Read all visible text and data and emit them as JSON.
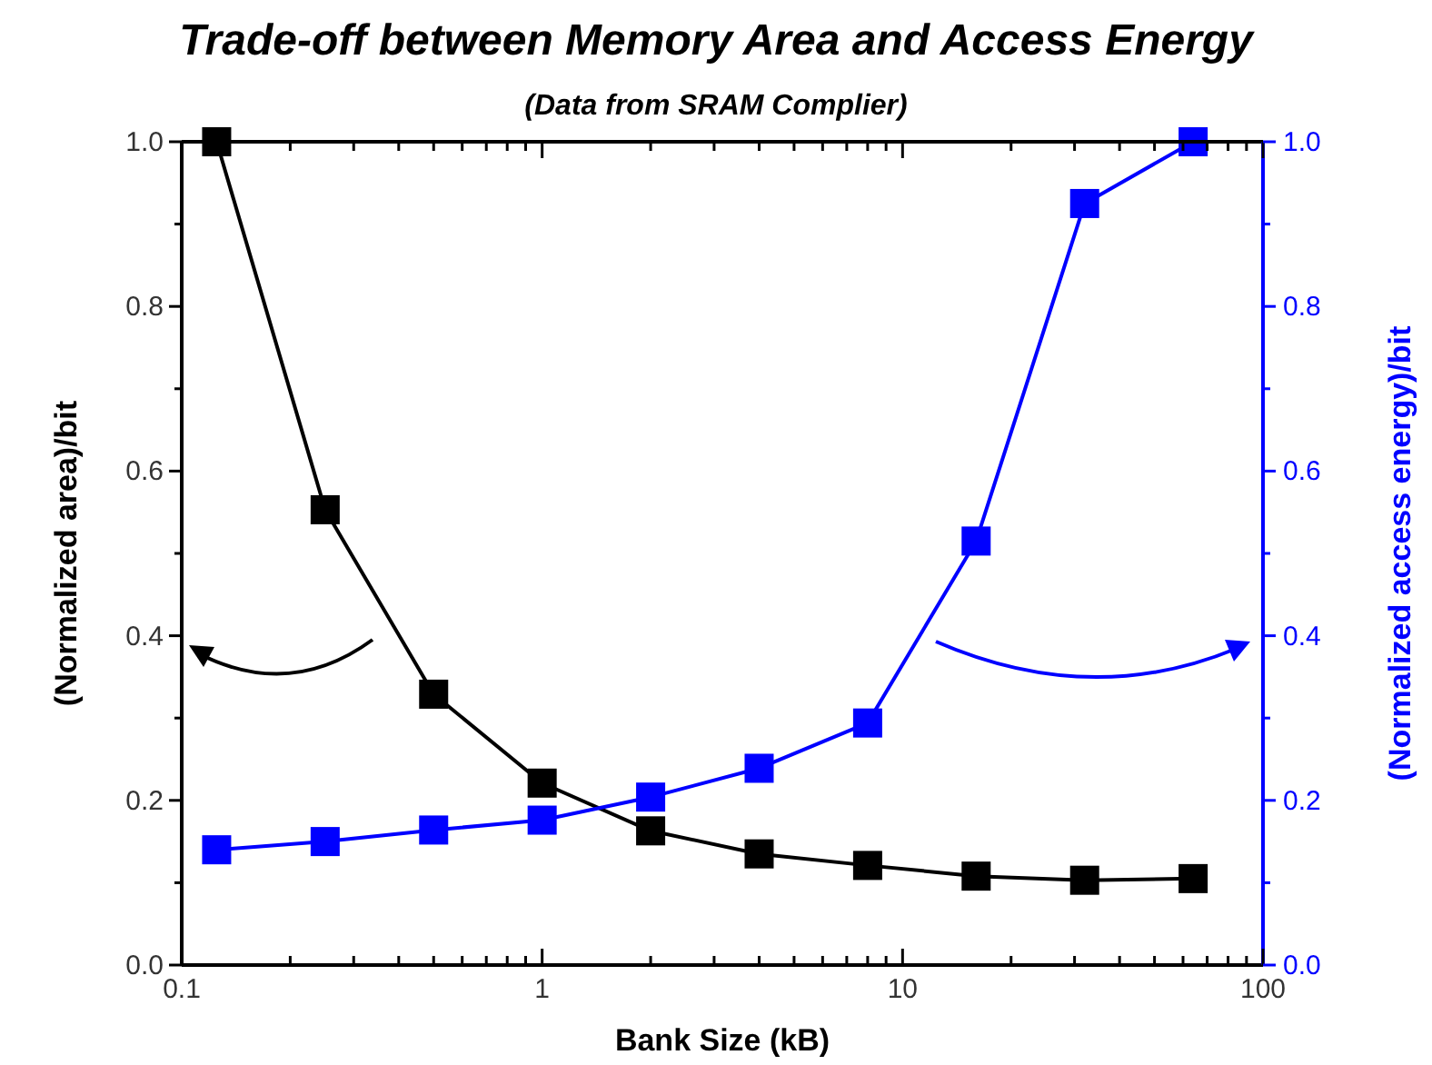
{
  "chart_data": {
    "type": "line",
    "title": "Trade-off between Memory Area and Access Energy",
    "subtitle": "(Data from SRAM Complier)",
    "xlabel": "Bank Size (kB)",
    "ylabel": "(Normalized area)/bit",
    "y2label": "(Normalized access energy)/bit",
    "log": "x",
    "x": [
      0.125,
      0.25,
      0.5,
      1,
      2,
      4,
      8,
      16,
      32,
      64
    ],
    "series": [
      {
        "color": "#000000",
        "values": [
          1.0,
          0.553,
          0.329,
          0.221,
          0.163,
          0.135,
          0.121,
          0.108,
          0.103,
          0.105
        ]
      },
      {
        "color": "#0000ff",
        "axis": "y2",
        "values": [
          0.14,
          0.15,
          0.164,
          0.176,
          0.204,
          0.239,
          0.294,
          0.515,
          0.925,
          1.0
        ]
      }
    ],
    "marker": "square",
    "line_style": "solid",
    "grid": false,
    "xlim": [
      0.1,
      100
    ],
    "xticks": [
      0.1,
      {
        "value": 0.2,
        "label": null
      },
      {
        "value": 0.3,
        "label": null
      },
      {
        "value": 0.4,
        "label": null
      },
      {
        "value": 0.5,
        "label": null
      },
      {
        "value": 0.6,
        "label": null
      },
      {
        "value": 0.7,
        "label": null
      },
      {
        "value": 0.8,
        "label": null
      },
      {
        "value": 0.9,
        "label": null
      },
      1,
      {
        "value": 2,
        "label": null
      },
      {
        "value": 3,
        "label": null
      },
      {
        "value": 4,
        "label": null
      },
      {
        "value": 5,
        "label": null
      },
      {
        "value": 6,
        "label": null
      },
      {
        "value": 7,
        "label": null
      },
      {
        "value": 8,
        "label": null
      },
      {
        "value": 9,
        "label": null
      },
      10,
      {
        "value": 20,
        "label": null
      },
      {
        "value": 30,
        "label": null
      },
      {
        "value": 40,
        "label": null
      },
      {
        "value": 50,
        "label": null
      },
      {
        "value": 60,
        "label": null
      },
      {
        "value": 70,
        "label": null
      },
      {
        "value": 80,
        "label": null
      },
      {
        "value": 90,
        "label": null
      },
      100
    ],
    "ylim": [
      0,
      1
    ],
    "yticks": [
      {
        "value": 0,
        "label": "0.0"
      },
      {
        "value": 0.1,
        "label": null
      },
      0.2,
      {
        "value": 0.3,
        "label": null
      },
      0.4,
      {
        "value": 0.5,
        "label": null
      },
      0.6,
      {
        "value": 0.7,
        "label": null
      },
      0.8,
      {
        "value": 0.9,
        "label": null
      },
      {
        "value": 1,
        "label": "1.0"
      }
    ],
    "y2lim": [
      0,
      1
    ],
    "y2ticks": [
      {
        "value": 0,
        "label": "0.0"
      },
      {
        "value": 0.1,
        "label": null
      },
      0.2,
      {
        "value": 0.3,
        "label": null
      },
      0.4,
      {
        "value": 0.5,
        "label": null
      },
      0.6,
      {
        "value": 0.7,
        "label": null
      },
      0.8,
      {
        "value": 0.9,
        "label": null
      },
      {
        "value": 1,
        "label": "1.0"
      }
    ]
  }
}
